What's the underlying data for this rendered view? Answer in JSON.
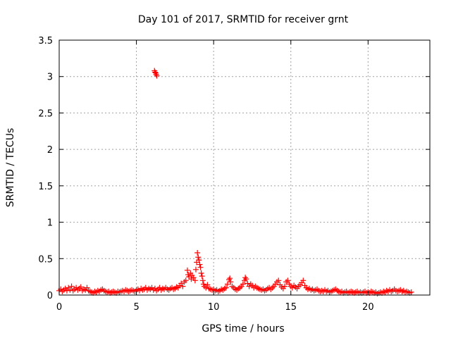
{
  "chart_data": {
    "type": "scatter",
    "title": "Day 101 of 2017, SRMTID for receiver grnt",
    "xlabel": "GPS time / hours",
    "ylabel": "SRMTID / TECUs",
    "xlim": [
      0,
      24
    ],
    "ylim": [
      0,
      3.5
    ],
    "xticks": [
      0,
      5,
      10,
      15,
      20
    ],
    "xtick_labels": [
      "0",
      "5",
      "10",
      "15",
      "20"
    ],
    "yticks": [
      0,
      0.5,
      1,
      1.5,
      2,
      2.5,
      3,
      3.5
    ],
    "ytick_labels": [
      "0",
      "0.5",
      "1",
      "1.5",
      "2",
      "2.5",
      "3",
      "3.5"
    ],
    "grid": true,
    "marker": "plus",
    "series": [
      {
        "name": "SRMTID",
        "color": "#ff0000",
        "points": [
          [
            0.0,
            0.06
          ],
          [
            0.1,
            0.08
          ],
          [
            0.2,
            0.05
          ],
          [
            0.3,
            0.07
          ],
          [
            0.4,
            0.09
          ],
          [
            0.5,
            0.06
          ],
          [
            0.6,
            0.1
          ],
          [
            0.7,
            0.07
          ],
          [
            0.8,
            0.12
          ],
          [
            0.9,
            0.06
          ],
          [
            1.0,
            0.08
          ],
          [
            1.1,
            0.1
          ],
          [
            1.2,
            0.07
          ],
          [
            1.3,
            0.09
          ],
          [
            1.4,
            0.11
          ],
          [
            1.5,
            0.06
          ],
          [
            1.6,
            0.08
          ],
          [
            1.7,
            0.07
          ],
          [
            1.8,
            0.1
          ],
          [
            1.9,
            0.06
          ],
          [
            2.0,
            0.05
          ],
          [
            2.1,
            0.04
          ],
          [
            2.2,
            0.03
          ],
          [
            2.3,
            0.05
          ],
          [
            2.4,
            0.04
          ],
          [
            2.5,
            0.06
          ],
          [
            2.6,
            0.05
          ],
          [
            2.7,
            0.07
          ],
          [
            2.8,
            0.08
          ],
          [
            2.9,
            0.06
          ],
          [
            3.0,
            0.05
          ],
          [
            3.1,
            0.04
          ],
          [
            3.2,
            0.05
          ],
          [
            3.3,
            0.03
          ],
          [
            3.4,
            0.04
          ],
          [
            3.5,
            0.05
          ],
          [
            3.6,
            0.04
          ],
          [
            3.7,
            0.03
          ],
          [
            3.8,
            0.05
          ],
          [
            3.9,
            0.04
          ],
          [
            4.0,
            0.05
          ],
          [
            4.1,
            0.06
          ],
          [
            4.2,
            0.05
          ],
          [
            4.3,
            0.07
          ],
          [
            4.4,
            0.06
          ],
          [
            4.5,
            0.05
          ],
          [
            4.6,
            0.06
          ],
          [
            4.7,
            0.07
          ],
          [
            4.8,
            0.06
          ],
          [
            4.9,
            0.05
          ],
          [
            5.0,
            0.07
          ],
          [
            5.1,
            0.08
          ],
          [
            5.2,
            0.06
          ],
          [
            5.3,
            0.09
          ],
          [
            5.4,
            0.07
          ],
          [
            5.5,
            0.08
          ],
          [
            5.6,
            0.1
          ],
          [
            5.7,
            0.07
          ],
          [
            5.8,
            0.09
          ],
          [
            5.9,
            0.08
          ],
          [
            6.0,
            0.1
          ],
          [
            6.1,
            0.07
          ],
          [
            6.2,
            0.09
          ],
          [
            6.3,
            0.06
          ],
          [
            6.4,
            0.08
          ],
          [
            6.5,
            0.1
          ],
          [
            6.6,
            0.07
          ],
          [
            6.7,
            0.09
          ],
          [
            6.8,
            0.08
          ],
          [
            6.9,
            0.1
          ],
          [
            6.17,
            3.08
          ],
          [
            6.2,
            3.06
          ],
          [
            6.25,
            3.05
          ],
          [
            6.28,
            3.03
          ],
          [
            6.32,
            3.01
          ],
          [
            7.0,
            0.08
          ],
          [
            7.1,
            0.07
          ],
          [
            7.2,
            0.09
          ],
          [
            7.3,
            0.1
          ],
          [
            7.4,
            0.08
          ],
          [
            7.5,
            0.09
          ],
          [
            7.6,
            0.11
          ],
          [
            7.7,
            0.1
          ],
          [
            7.8,
            0.13
          ],
          [
            7.9,
            0.16
          ],
          [
            8.0,
            0.12
          ],
          [
            8.1,
            0.18
          ],
          [
            8.2,
            0.2
          ],
          [
            8.3,
            0.34
          ],
          [
            8.35,
            0.28
          ],
          [
            8.4,
            0.25
          ],
          [
            8.5,
            0.3
          ],
          [
            8.55,
            0.22
          ],
          [
            8.6,
            0.27
          ],
          [
            8.7,
            0.24
          ],
          [
            8.8,
            0.2
          ],
          [
            8.85,
            0.35
          ],
          [
            8.9,
            0.45
          ],
          [
            8.95,
            0.58
          ],
          [
            9.0,
            0.52
          ],
          [
            9.05,
            0.48
          ],
          [
            9.1,
            0.42
          ],
          [
            9.15,
            0.38
          ],
          [
            9.2,
            0.3
          ],
          [
            9.25,
            0.26
          ],
          [
            9.3,
            0.2
          ],
          [
            9.35,
            0.15
          ],
          [
            9.4,
            0.12
          ],
          [
            9.5,
            0.1
          ],
          [
            9.6,
            0.14
          ],
          [
            9.7,
            0.09
          ],
          [
            9.8,
            0.08
          ],
          [
            9.9,
            0.07
          ],
          [
            10.0,
            0.08
          ],
          [
            10.1,
            0.06
          ],
          [
            10.2,
            0.07
          ],
          [
            10.3,
            0.05
          ],
          [
            10.4,
            0.06
          ],
          [
            10.5,
            0.08
          ],
          [
            10.6,
            0.07
          ],
          [
            10.7,
            0.09
          ],
          [
            10.8,
            0.1
          ],
          [
            10.9,
            0.15
          ],
          [
            11.0,
            0.21
          ],
          [
            11.05,
            0.23
          ],
          [
            11.1,
            0.18
          ],
          [
            11.2,
            0.12
          ],
          [
            11.3,
            0.1
          ],
          [
            11.4,
            0.08
          ],
          [
            11.5,
            0.07
          ],
          [
            11.6,
            0.09
          ],
          [
            11.7,
            0.1
          ],
          [
            11.8,
            0.12
          ],
          [
            11.9,
            0.15
          ],
          [
            12.0,
            0.2
          ],
          [
            12.05,
            0.24
          ],
          [
            12.1,
            0.22
          ],
          [
            12.2,
            0.16
          ],
          [
            12.3,
            0.12
          ],
          [
            12.4,
            0.15
          ],
          [
            12.5,
            0.13
          ],
          [
            12.6,
            0.1
          ],
          [
            12.7,
            0.12
          ],
          [
            12.8,
            0.1
          ],
          [
            12.9,
            0.09
          ],
          [
            13.0,
            0.08
          ],
          [
            13.1,
            0.07
          ],
          [
            13.2,
            0.08
          ],
          [
            13.3,
            0.06
          ],
          [
            13.4,
            0.07
          ],
          [
            13.5,
            0.09
          ],
          [
            13.6,
            0.1
          ],
          [
            13.7,
            0.08
          ],
          [
            13.8,
            0.1
          ],
          [
            13.9,
            0.12
          ],
          [
            14.0,
            0.15
          ],
          [
            14.1,
            0.18
          ],
          [
            14.2,
            0.2
          ],
          [
            14.3,
            0.14
          ],
          [
            14.4,
            0.11
          ],
          [
            14.5,
            0.09
          ],
          [
            14.6,
            0.12
          ],
          [
            14.7,
            0.18
          ],
          [
            14.8,
            0.2
          ],
          [
            14.9,
            0.15
          ],
          [
            15.0,
            0.12
          ],
          [
            15.1,
            0.1
          ],
          [
            15.2,
            0.13
          ],
          [
            15.3,
            0.11
          ],
          [
            15.4,
            0.09
          ],
          [
            15.5,
            0.12
          ],
          [
            15.6,
            0.14
          ],
          [
            15.7,
            0.17
          ],
          [
            15.8,
            0.2
          ],
          [
            15.9,
            0.13
          ],
          [
            16.0,
            0.1
          ],
          [
            16.1,
            0.08
          ],
          [
            16.2,
            0.09
          ],
          [
            16.3,
            0.07
          ],
          [
            16.4,
            0.08
          ],
          [
            16.5,
            0.06
          ],
          [
            16.6,
            0.07
          ],
          [
            16.7,
            0.08
          ],
          [
            16.8,
            0.06
          ],
          [
            16.9,
            0.05
          ],
          [
            17.0,
            0.06
          ],
          [
            17.1,
            0.05
          ],
          [
            17.2,
            0.07
          ],
          [
            17.3,
            0.05
          ],
          [
            17.4,
            0.06
          ],
          [
            17.5,
            0.04
          ],
          [
            17.6,
            0.05
          ],
          [
            17.7,
            0.06
          ],
          [
            17.8,
            0.07
          ],
          [
            17.9,
            0.08
          ],
          [
            18.0,
            0.06
          ],
          [
            18.1,
            0.05
          ],
          [
            18.2,
            0.04
          ],
          [
            18.3,
            0.05
          ],
          [
            18.4,
            0.03
          ],
          [
            18.5,
            0.04
          ],
          [
            18.6,
            0.05
          ],
          [
            18.7,
            0.03
          ],
          [
            18.8,
            0.04
          ],
          [
            18.9,
            0.05
          ],
          [
            19.0,
            0.04
          ],
          [
            19.1,
            0.03
          ],
          [
            19.2,
            0.04
          ],
          [
            19.3,
            0.05
          ],
          [
            19.4,
            0.03
          ],
          [
            19.5,
            0.04
          ],
          [
            19.6,
            0.03
          ],
          [
            19.7,
            0.04
          ],
          [
            19.8,
            0.05
          ],
          [
            19.9,
            0.03
          ],
          [
            20.0,
            0.04
          ],
          [
            20.1,
            0.03
          ],
          [
            20.2,
            0.05
          ],
          [
            20.3,
            0.04
          ],
          [
            20.4,
            0.03
          ],
          [
            20.5,
            0.04
          ],
          [
            20.6,
            0.02
          ],
          [
            20.7,
            0.03
          ],
          [
            20.8,
            0.04
          ],
          [
            20.9,
            0.03
          ],
          [
            21.0,
            0.05
          ],
          [
            21.1,
            0.04
          ],
          [
            21.2,
            0.06
          ],
          [
            21.3,
            0.05
          ],
          [
            21.4,
            0.07
          ],
          [
            21.5,
            0.05
          ],
          [
            21.6,
            0.06
          ],
          [
            21.7,
            0.08
          ],
          [
            21.8,
            0.06
          ],
          [
            21.9,
            0.05
          ],
          [
            22.0,
            0.06
          ],
          [
            22.1,
            0.07
          ],
          [
            22.2,
            0.05
          ],
          [
            22.3,
            0.06
          ],
          [
            22.4,
            0.04
          ],
          [
            22.5,
            0.05
          ],
          [
            22.6,
            0.04
          ],
          [
            22.7,
            0.03
          ],
          [
            22.8,
            0.04
          ]
        ]
      }
    ]
  }
}
